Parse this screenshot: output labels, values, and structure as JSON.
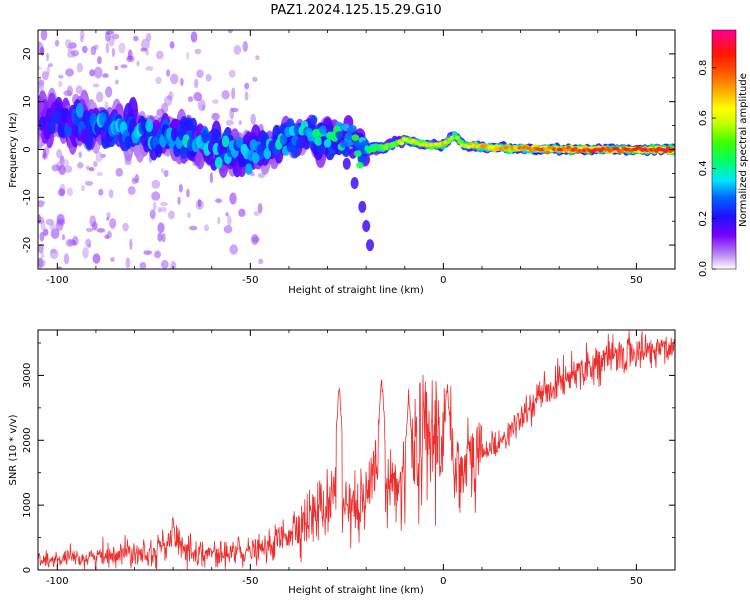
{
  "title": "PAZ1.2024.125.15.29.G10",
  "chart_data": [
    {
      "type": "heatmap",
      "xlabel": "Height of straight line (km)",
      "ylabel": "Frequency (Hz)",
      "xlim": [
        -105,
        60
      ],
      "ylim": [
        -25,
        25
      ],
      "xticks": [
        -100,
        -50,
        0,
        50
      ],
      "yticks": [
        -20,
        -10,
        0,
        10,
        20
      ],
      "colorbar": {
        "label": "Normalized spectral amplitude",
        "range": [
          0,
          0.95
        ],
        "ticks": [
          0.0,
          0.2,
          0.4,
          0.6,
          0.8
        ],
        "tick_labels": [
          "0.0",
          "0.2",
          "0.4",
          "0.6",
          "0.8"
        ],
        "colormap": "rainbow"
      },
      "ridge": {
        "x": [
          -105,
          -95,
          -85,
          -75,
          -65,
          -55,
          -45,
          -35,
          -25,
          -20,
          -15,
          -10,
          -5,
          0,
          3,
          5,
          10,
          20,
          30,
          40,
          50,
          60
        ],
        "y": [
          7,
          5.5,
          4,
          3,
          2,
          -1,
          0,
          3,
          2,
          0,
          0.5,
          2,
          1,
          1,
          3,
          1,
          0.5,
          0.2,
          0,
          0,
          0,
          0
        ],
        "amplitude": [
          0.15,
          0.25,
          0.3,
          0.3,
          0.3,
          0.3,
          0.3,
          0.35,
          0.35,
          0.45,
          0.5,
          0.6,
          0.62,
          0.65,
          0.55,
          0.6,
          0.7,
          0.75,
          0.8,
          0.85,
          0.85,
          0.85
        ],
        "width_hz": [
          4,
          4,
          3.5,
          3.5,
          3.5,
          3,
          3,
          2.5,
          2,
          1.5,
          1.2,
          1,
          1,
          1,
          1,
          1,
          1,
          1,
          1,
          1,
          1,
          1
        ]
      },
      "branch": {
        "x": [
          -25,
          -23,
          -21,
          -20,
          -19
        ],
        "y": [
          -3,
          -7,
          -12,
          -16,
          -20
        ]
      }
    },
    {
      "type": "line",
      "xlabel": "Height of straight line (km)",
      "ylabel": "SNR (10 * v/v)",
      "xlim": [
        -105,
        60
      ],
      "ylim": [
        0,
        3700
      ],
      "xticks": [
        -100,
        -50,
        0,
        50
      ],
      "yticks": [
        0,
        1000,
        2000,
        3000
      ],
      "series": [
        {
          "color": "#ee2c2c",
          "x": [
            -105,
            -100,
            -95,
            -90,
            -85,
            -80,
            -75,
            -70,
            -65,
            -60,
            -55,
            -50,
            -45,
            -40,
            -35,
            -30,
            -28,
            -25,
            -20,
            -17,
            -15,
            -10,
            -5,
            0,
            5,
            10,
            15,
            20,
            25,
            30,
            35,
            40,
            45,
            50,
            55,
            60
          ],
          "y": [
            150,
            150,
            180,
            200,
            250,
            300,
            280,
            450,
            300,
            250,
            250,
            280,
            350,
            600,
            800,
            1000,
            1500,
            800,
            1000,
            1500,
            1200,
            1500,
            2000,
            2100,
            1500,
            1800,
            2000,
            2300,
            2700,
            2900,
            3100,
            3200,
            3300,
            3350,
            3400,
            3450
          ]
        }
      ],
      "peaks": {
        "x": [
          -70,
          -53,
          -27,
          -16,
          -9,
          1
        ],
        "y": [
          950,
          600,
          2950,
          3050,
          2800,
          2950
        ]
      }
    }
  ]
}
